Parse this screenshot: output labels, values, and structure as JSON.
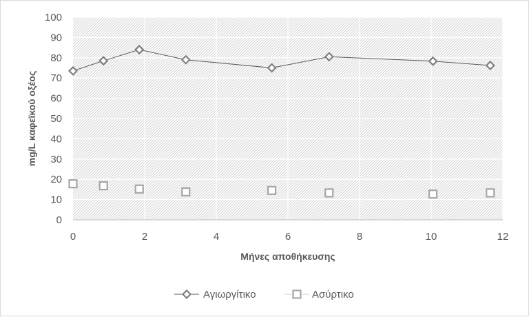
{
  "chart_data": {
    "type": "scatter",
    "title": "",
    "xlabel": "Μήνες αποθήκευσης",
    "ylabel": "mg/L καφεϊκού οξέος",
    "xlim": [
      0,
      12
    ],
    "ylim": [
      0,
      100
    ],
    "x_ticks": [
      0,
      2,
      4,
      6,
      8,
      10,
      12
    ],
    "y_ticks": [
      0,
      10,
      20,
      30,
      40,
      50,
      60,
      70,
      80,
      90,
      100
    ],
    "grid": true,
    "legend_position": "bottom",
    "series": [
      {
        "name": "Αγιωργίτικο",
        "marker": "diamond",
        "line": true,
        "color": "#7f7f7f",
        "x": [
          0,
          0.85,
          1.85,
          3.15,
          5.55,
          7.15,
          10.05,
          11.65
        ],
        "y": [
          73.5,
          78.5,
          84,
          79,
          75,
          80.5,
          78.3,
          76.2
        ]
      },
      {
        "name": "Ασύρτικο",
        "marker": "square",
        "line": false,
        "color": "#a6a6a6",
        "x": [
          0,
          0.85,
          1.85,
          3.15,
          5.55,
          7.15,
          10.05,
          11.65
        ],
        "y": [
          17.8,
          16.8,
          15.2,
          13.8,
          14.5,
          13.3,
          12.7,
          13.3
        ]
      }
    ]
  }
}
